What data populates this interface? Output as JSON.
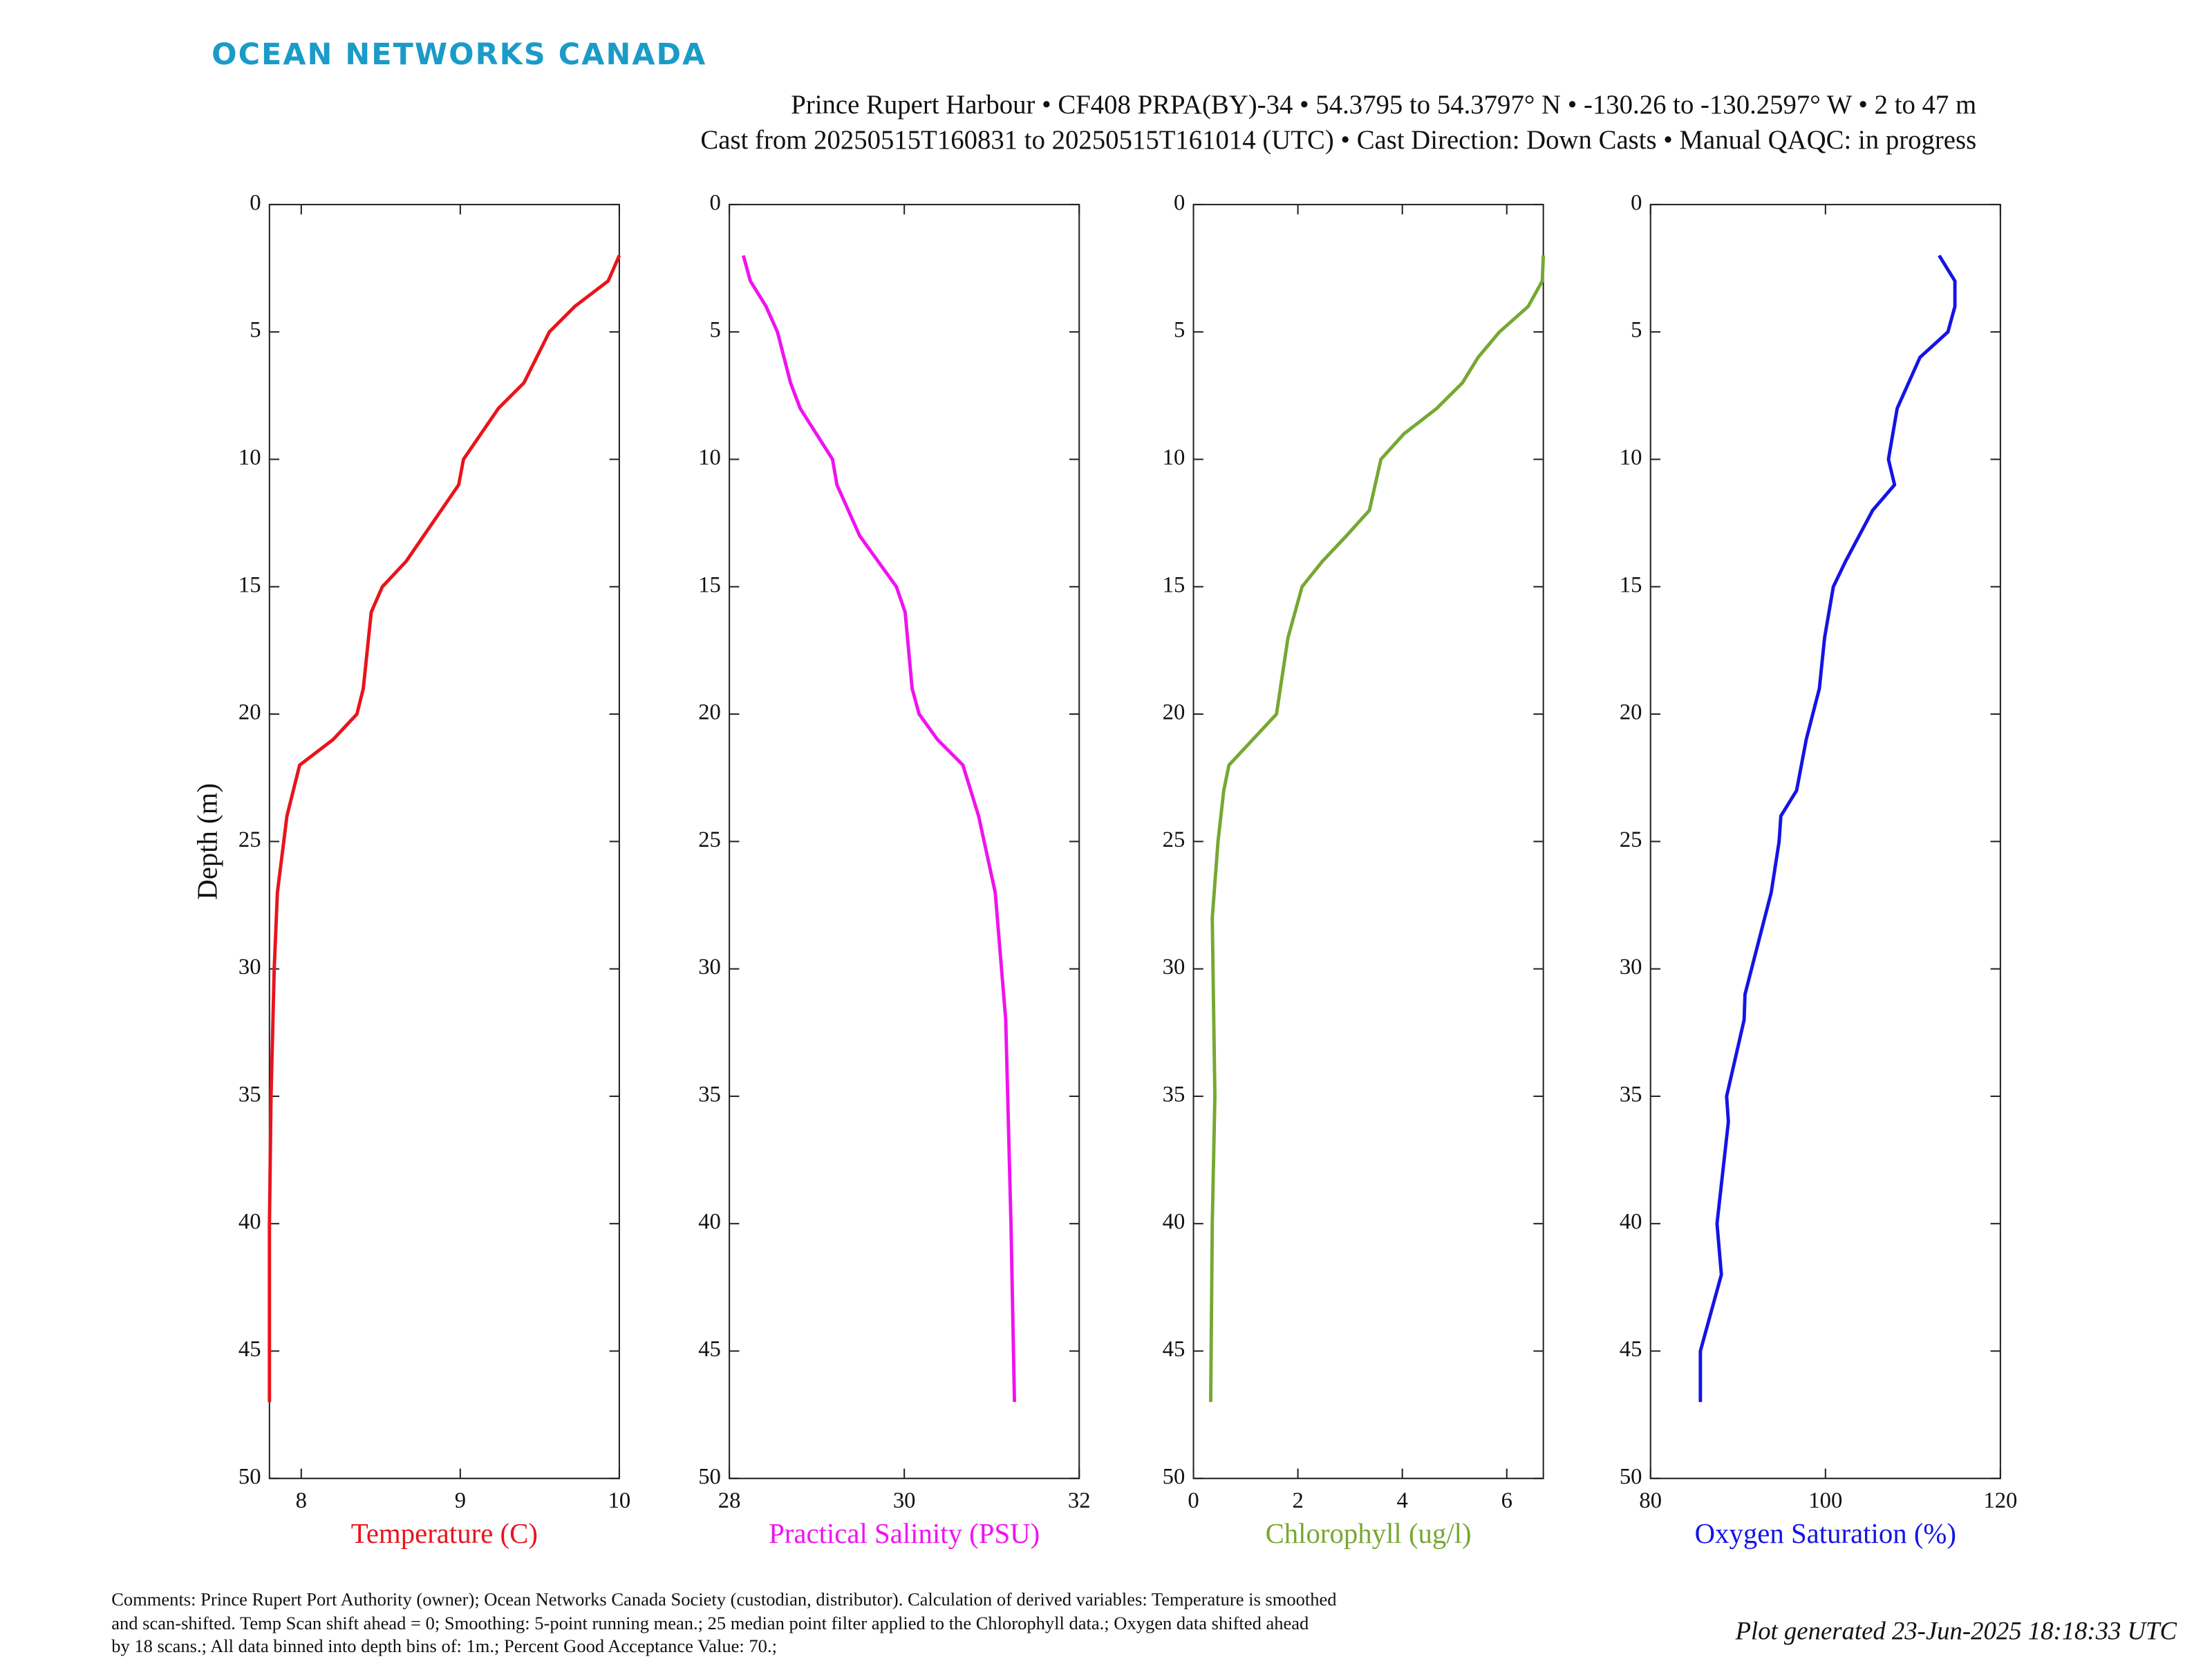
{
  "header": {
    "logo": "OCEAN NETWORKS CANADA",
    "subtitle": [
      "Prince Rupert Harbour • CF408 PRPA(BY)-34 • 54.3795 to 54.3797° N • -130.26 to -130.2597° W • 2 to 47 m",
      "Cast from 20250515T160831 to 20250515T161014 (UTC) • Cast Direction: Down Casts • Manual QAQC: in progress"
    ]
  },
  "chart_data": [
    {
      "type": "line",
      "xlabel": "Temperature (C)",
      "ylabel": "Depth (m)",
      "color": "#e8141c",
      "xlim": [
        7.8,
        10.0
      ],
      "xticks": [
        8,
        9,
        10
      ],
      "ylim": [
        0,
        50
      ],
      "yticks": [
        0,
        5,
        10,
        15,
        20,
        25,
        30,
        35,
        40,
        45,
        50
      ],
      "y_reversed": true,
      "y": [
        2,
        3,
        4,
        5,
        7,
        8,
        10,
        11,
        13,
        14,
        15,
        16,
        19,
        20,
        21,
        22,
        23,
        24,
        27,
        30,
        35,
        40,
        47
      ],
      "values": [
        10.0,
        9.93,
        9.72,
        9.56,
        9.4,
        9.24,
        9.02,
        8.99,
        8.77,
        8.66,
        8.51,
        8.44,
        8.39,
        8.35,
        8.2,
        7.99,
        7.95,
        7.91,
        7.85,
        7.83,
        7.81,
        7.8,
        7.8
      ]
    },
    {
      "type": "line",
      "xlabel": "Practical Salinity (PSU)",
      "color": "#f012f0",
      "xlim": [
        28,
        32
      ],
      "xticks": [
        28,
        30,
        32
      ],
      "ylim": [
        0,
        50
      ],
      "yticks": [
        0,
        5,
        10,
        15,
        20,
        25,
        30,
        35,
        40,
        45,
        50
      ],
      "y_reversed": true,
      "y": [
        2,
        3,
        4,
        5,
        7,
        8,
        10,
        11,
        13,
        15,
        16,
        19,
        20,
        21,
        22,
        24,
        27,
        32,
        40,
        47
      ],
      "values": [
        28.16,
        28.24,
        28.42,
        28.55,
        28.7,
        28.81,
        29.18,
        29.23,
        29.49,
        29.91,
        30.01,
        30.09,
        30.17,
        30.38,
        30.67,
        30.85,
        31.04,
        31.16,
        31.22,
        31.26
      ]
    },
    {
      "type": "line",
      "xlabel": "Chlorophyll (ug/l)",
      "color": "#76a832",
      "xlim": [
        0,
        6.7
      ],
      "xticks": [
        0,
        2,
        4,
        6
      ],
      "ylim": [
        0,
        50
      ],
      "yticks": [
        0,
        5,
        10,
        15,
        20,
        25,
        30,
        35,
        40,
        45,
        50
      ],
      "y_reversed": true,
      "y": [
        2,
        3,
        4,
        5,
        6,
        7,
        8,
        9,
        10,
        12,
        13,
        14,
        15,
        17,
        20,
        22,
        23,
        25,
        28,
        35,
        40,
        47
      ],
      "values": [
        6.7,
        6.68,
        6.41,
        5.86,
        5.45,
        5.15,
        4.66,
        4.03,
        3.59,
        3.37,
        2.93,
        2.47,
        2.08,
        1.81,
        1.59,
        0.68,
        0.58,
        0.47,
        0.36,
        0.41,
        0.36,
        0.33
      ]
    },
    {
      "type": "line",
      "xlabel": "Oxygen Saturation (%)",
      "color": "#1414e6",
      "xlim": [
        80,
        120
      ],
      "xticks": [
        80,
        100,
        120
      ],
      "ylim": [
        0,
        50
      ],
      "yticks": [
        0,
        5,
        10,
        15,
        20,
        25,
        30,
        35,
        40,
        45,
        50
      ],
      "y_reversed": true,
      "y": [
        2,
        3,
        4,
        5,
        6,
        8,
        10,
        11,
        12,
        14,
        15,
        17,
        19,
        21,
        23,
        24,
        25,
        27,
        29,
        31,
        32,
        35,
        36,
        40,
        42,
        45,
        47
      ],
      "values": [
        113.0,
        114.8,
        114.8,
        114.0,
        110.8,
        108.2,
        107.2,
        107.9,
        105.4,
        102.3,
        100.9,
        99.9,
        99.3,
        97.8,
        96.7,
        94.9,
        94.7,
        93.8,
        92.3,
        90.8,
        90.7,
        88.7,
        88.9,
        87.6,
        88.1,
        85.7,
        85.7
      ]
    }
  ],
  "comments": [
    "Comments: Prince Rupert Port Authority (owner); Ocean Networks Canada Society (custodian, distributor). Calculation of derived variables: Temperature is smoothed",
    "and scan-shifted. Temp Scan shift ahead = 0; Smoothing: 5-point running mean.; 25 median point filter applied to the Chlorophyll data.; Oxygen data shifted ahead",
    "by 18 scans.; All data binned into depth bins of: 1m.; Percent Good Acceptance Value: 70.;"
  ],
  "footer": "Plot generated 23-Jun-2025 18:18:33 UTC"
}
